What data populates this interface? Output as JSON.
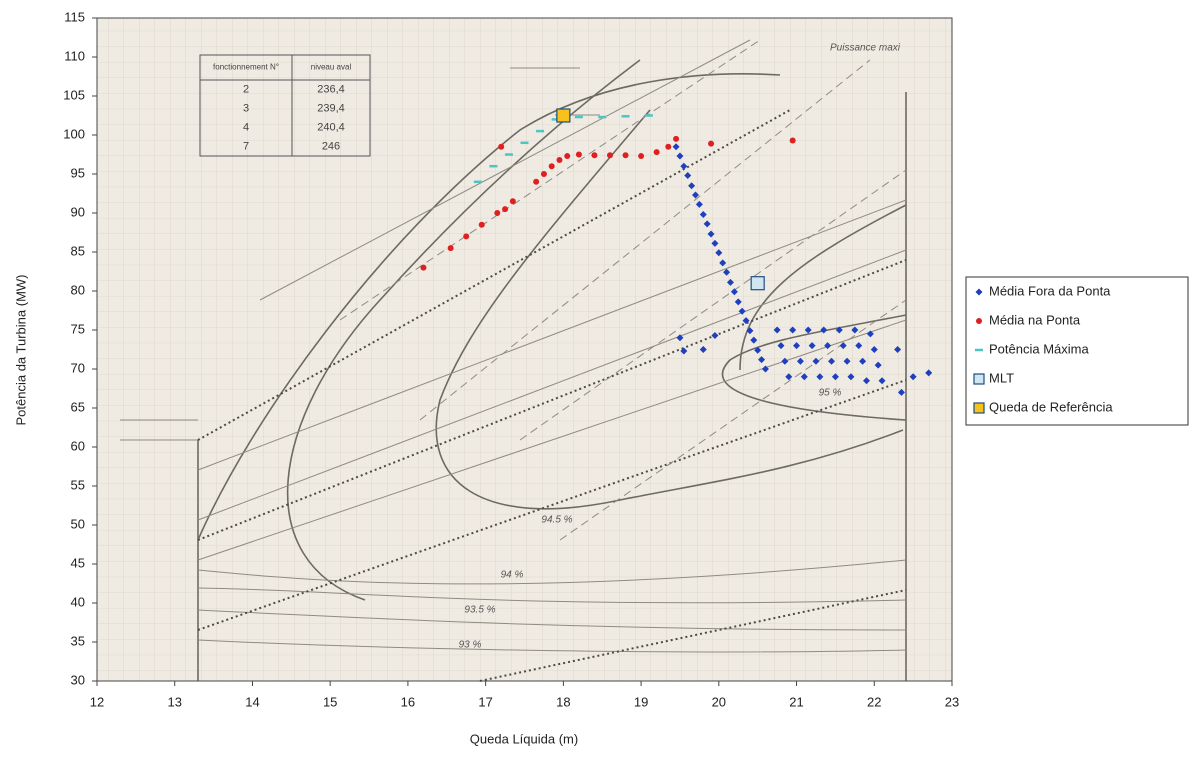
{
  "chart_data": {
    "type": "scatter",
    "x_label": "Queda Líquida (m)",
    "y_label": "Potência da Turbina (MW)",
    "xlim": [
      12,
      23
    ],
    "xticks": [
      12,
      13,
      14,
      15,
      16,
      17,
      18,
      19,
      20,
      21,
      22,
      23
    ],
    "ylim": [
      30,
      115
    ],
    "yticks": [
      30,
      35,
      40,
      45,
      50,
      55,
      60,
      65,
      70,
      75,
      80,
      85,
      90,
      95,
      100,
      105,
      110,
      115
    ],
    "legend": "right",
    "background_table": {
      "header": [
        "fonctionnement N°",
        "niveau aval"
      ],
      "rows": [
        [
          "2",
          "236,4"
        ],
        [
          "3",
          "239,4"
        ],
        [
          "4",
          "240,4"
        ],
        [
          "7",
          "246"
        ]
      ]
    },
    "background_annotations": [
      "Puissance maxi",
      "95 %",
      "94.5 %",
      "94 %",
      "93.5 %",
      "93 %"
    ],
    "series": [
      {
        "name": "Média Fora da Ponta",
        "color": "#1f3fbf",
        "marker": "diamond",
        "x": [
          19.45,
          19.5,
          19.55,
          19.6,
          19.65,
          19.7,
          19.75,
          19.8,
          19.85,
          19.9,
          19.95,
          20.0,
          20.05,
          20.1,
          20.15,
          20.2,
          20.25,
          20.3,
          20.35,
          20.4,
          20.45,
          20.5,
          20.55,
          20.6,
          20.75,
          20.8,
          20.85,
          20.9,
          20.95,
          21.0,
          21.05,
          21.1,
          21.15,
          21.2,
          21.25,
          21.3,
          21.35,
          21.4,
          21.45,
          21.5,
          21.55,
          21.6,
          21.65,
          21.7,
          21.75,
          21.8,
          21.85,
          21.9,
          21.95,
          22.0,
          22.05,
          22.1,
          22.3,
          22.35,
          22.5,
          22.7,
          19.5,
          19.55,
          19.8,
          19.95
        ],
        "values": [
          98.5,
          97.3,
          96.0,
          94.8,
          93.5,
          92.3,
          91.1,
          89.8,
          88.6,
          87.3,
          86.1,
          84.9,
          83.6,
          82.4,
          81.1,
          79.9,
          78.6,
          77.4,
          76.2,
          74.9,
          73.7,
          72.4,
          71.2,
          70.0,
          75,
          73,
          71,
          69,
          75,
          73,
          71,
          69,
          75,
          73,
          71,
          69,
          75,
          73,
          71,
          69,
          75,
          73,
          71,
          69,
          75,
          73,
          71,
          68.5,
          74.5,
          72.5,
          70.5,
          68.5,
          72.5,
          67,
          69,
          69.5,
          74,
          72.3,
          72.5,
          74.3
        ]
      },
      {
        "name": "Média na Ponta",
        "color": "#e02020",
        "marker": "circle",
        "x": [
          16.2,
          16.55,
          16.75,
          16.95,
          17.15,
          17.25,
          17.35,
          17.2,
          17.65,
          17.75,
          17.85,
          17.95,
          18.05,
          18.2,
          18.4,
          18.6,
          18.8,
          19.0,
          19.2,
          19.35,
          19.45,
          19.9,
          20.95
        ],
        "values": [
          83,
          85.5,
          87,
          88.5,
          90,
          90.5,
          91.5,
          98.5,
          94,
          95,
          96,
          96.8,
          97.3,
          97.5,
          97.4,
          97.4,
          97.4,
          97.3,
          97.8,
          98.5,
          99.5,
          98.9,
          99.3
        ]
      },
      {
        "name": "Potência Máxima",
        "color": "#4fc4c4",
        "marker": "dash",
        "x": [
          16.9,
          17.1,
          17.3,
          17.5,
          17.7,
          17.9,
          18.2,
          18.5,
          18.8,
          19.1
        ],
        "values": [
          94,
          96,
          97.5,
          99,
          100.5,
          102,
          102.3,
          102.3,
          102.4,
          102.5
        ]
      },
      {
        "name": "MLT",
        "color": "#cfe6f2",
        "marker": "square",
        "x": [
          20.5
        ],
        "values": [
          81
        ]
      },
      {
        "name": "Queda de Referência",
        "color": "#f7c21b",
        "marker": "square",
        "x": [
          18
        ],
        "values": [
          102.5
        ]
      }
    ]
  }
}
